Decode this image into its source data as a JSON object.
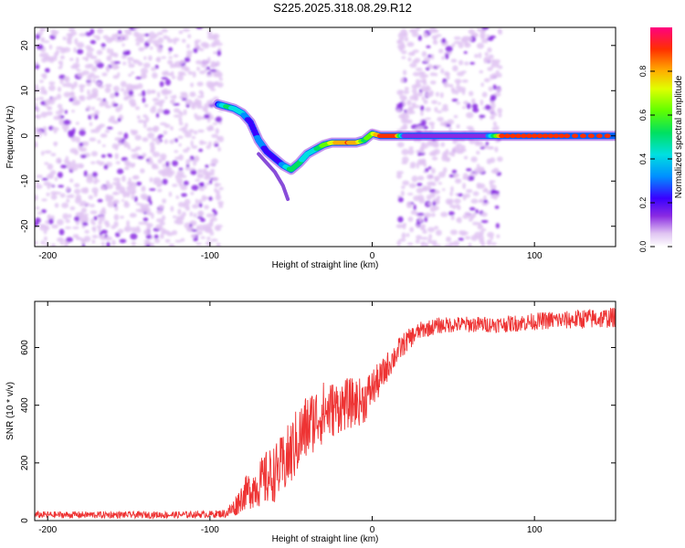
{
  "title": "S225.2025.318.08.29.R12",
  "chart_data": [
    {
      "type": "heatmap",
      "xlabel": "Height of straight line (km)",
      "ylabel": "Frequency (Hz)",
      "xlim": [
        -208,
        150
      ],
      "ylim": [
        -24.5,
        24
      ],
      "xticks": [
        -200,
        -100,
        0,
        100
      ],
      "yticks": [
        -20,
        -10,
        0,
        10,
        20
      ],
      "grid": false,
      "colorbar": {
        "label": "Normalized spectral amplitude",
        "range": [
          0,
          1
        ],
        "ticks": [
          "0.0",
          "0.2",
          "0.4",
          "0.6",
          "0.8"
        ],
        "colormap": "rainbow"
      },
      "noise_regions_x": [
        [
          -208,
          -93
        ],
        [
          16,
          79
        ]
      ],
      "empty_regions_x": [
        [
          -93,
          -100
        ],
        [
          79,
          150
        ]
      ],
      "ridge": {
        "x": [
          -95,
          -90,
          -85,
          -80,
          -75,
          -70,
          -65,
          -60,
          -55,
          -50,
          -45,
          -40,
          -35,
          -30,
          -25,
          -20,
          -15,
          -10,
          -5,
          0,
          5,
          10,
          15,
          20,
          30,
          40,
          50,
          60,
          70,
          80,
          100,
          120,
          150
        ],
        "frequency_hz": [
          7,
          6.5,
          6,
          5,
          3,
          -1,
          -3.5,
          -5,
          -6.5,
          -7.5,
          -6,
          -4,
          -3,
          -2,
          -1.5,
          -1.5,
          -1.5,
          -1.5,
          -1,
          0.5,
          0,
          0,
          0,
          0,
          0,
          0,
          0,
          0,
          0,
          0,
          0,
          0,
          0
        ],
        "amplitude": [
          0.3,
          0.55,
          0.5,
          0.45,
          0.25,
          0.35,
          0.3,
          0.25,
          0.35,
          0.6,
          0.55,
          0.45,
          0.5,
          0.65,
          0.75,
          0.85,
          0.9,
          0.85,
          0.6,
          0.7,
          0.9,
          0.95,
          0.95,
          0.2,
          0.2,
          0.2,
          0.2,
          0.2,
          0.2,
          0.95,
          0.95,
          0.95,
          0.95
        ]
      },
      "branch": {
        "x": [
          -70,
          -65,
          -60,
          -55,
          -52
        ],
        "frequency_hz": [
          -4,
          -6,
          -8,
          -11,
          -14
        ]
      }
    },
    {
      "type": "line",
      "xlabel": "Height of straight line (km)",
      "ylabel": "SNR (10 * v/v)",
      "xlim": [
        -208,
        150
      ],
      "ylim": [
        0,
        760
      ],
      "xticks": [
        -200,
        -100,
        0,
        100
      ],
      "yticks": [
        0,
        200,
        400,
        600
      ],
      "grid": false,
      "series": [
        {
          "name": "SNR",
          "color": "#ee3333",
          "x": [
            -208,
            -180,
            -150,
            -120,
            -100,
            -90,
            -85,
            -80,
            -75,
            -70,
            -65,
            -60,
            -55,
            -50,
            -45,
            -40,
            -35,
            -30,
            -25,
            -20,
            -15,
            -10,
            -5,
            0,
            5,
            10,
            15,
            20,
            25,
            30,
            40,
            50,
            60,
            70,
            80,
            90,
            100,
            110,
            120,
            130,
            140,
            150
          ],
          "values": [
            20,
            20,
            20,
            20,
            22,
            25,
            45,
            85,
            110,
            125,
            145,
            165,
            190,
            235,
            285,
            325,
            355,
            375,
            385,
            395,
            405,
            410,
            415,
            460,
            490,
            540,
            580,
            615,
            640,
            660,
            675,
            680,
            680,
            680,
            680,
            685,
            690,
            695,
            695,
            700,
            700,
            705
          ],
          "noise_amplitude": [
            12,
            12,
            12,
            12,
            12,
            15,
            35,
            50,
            70,
            80,
            100,
            100,
            110,
            120,
            120,
            120,
            110,
            110,
            100,
            90,
            90,
            85,
            80,
            70,
            60,
            50,
            45,
            40,
            35,
            30,
            28,
            28,
            28,
            28,
            28,
            30,
            30,
            32,
            32,
            35,
            35,
            35
          ]
        }
      ]
    }
  ]
}
